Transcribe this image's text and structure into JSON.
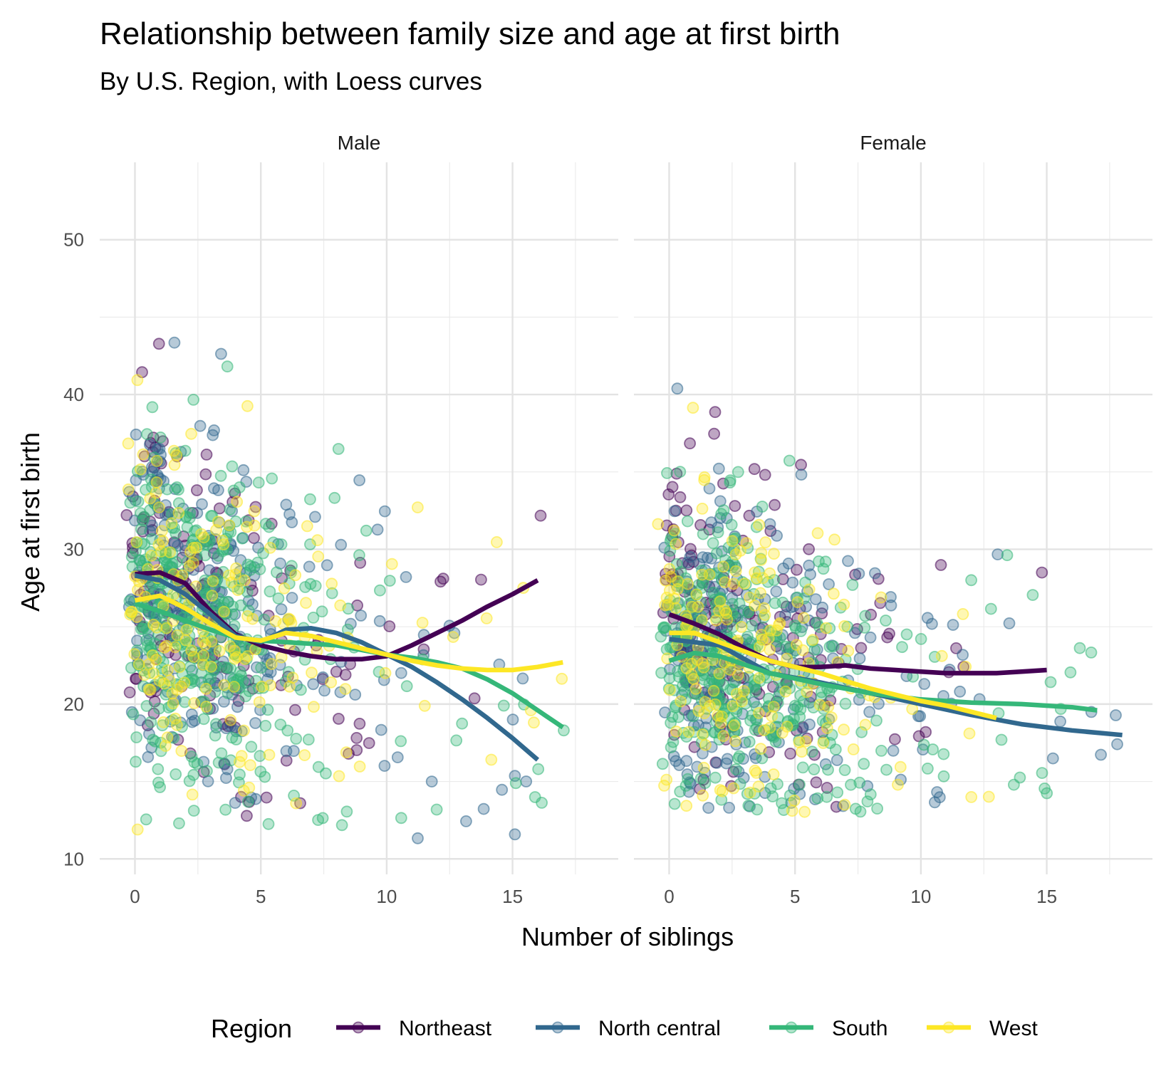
{
  "chart_data": {
    "type": "scatter",
    "title": "Relationship between family size and age at first birth",
    "subtitle": "By U.S. Region, with Loess curves",
    "xlabel": "Number of siblings",
    "ylabel": "Age at first birth",
    "xlim": [
      -1.4,
      19.2
    ],
    "ylim": [
      9,
      55
    ],
    "x_ticks": [
      0,
      5,
      10,
      15
    ],
    "y_ticks": [
      10,
      20,
      30,
      40,
      50
    ],
    "grid": true,
    "legend": {
      "title": "Region",
      "placement": "bottom",
      "entries": [
        "Northeast",
        "North central",
        "South",
        "West"
      ]
    },
    "series_colors": {
      "Northeast": "#440154",
      "North central": "#31688e",
      "South": "#35b779",
      "West": "#fde725"
    },
    "panels": [
      {
        "name": "Male",
        "loess": [
          {
            "name": "Northeast",
            "x": [
              0,
              1,
              2,
              3,
              4,
              5,
              6,
              7,
              8,
              9,
              10,
              11,
              12,
              13,
              14,
              15,
              16
            ],
            "y": [
              28.4,
              28.5,
              27.8,
              26.0,
              24.5,
              23.8,
              23.4,
              23.1,
              22.9,
              22.9,
              23.1,
              23.8,
              24.6,
              25.4,
              26.3,
              27.1,
              28.0
            ]
          },
          {
            "name": "North central",
            "x": [
              0,
              1,
              2,
              3,
              4,
              5,
              6,
              7,
              8,
              9,
              10,
              11,
              12,
              13,
              14,
              15,
              16
            ],
            "y": [
              28.3,
              28.0,
              27.1,
              25.8,
              24.4,
              24.0,
              24.8,
              24.9,
              24.6,
              24.0,
              23.2,
              22.4,
              21.4,
              20.3,
              19.1,
              17.8,
              16.4
            ]
          },
          {
            "name": "South",
            "x": [
              0,
              1,
              2,
              3,
              4,
              5,
              6,
              7,
              8,
              9,
              10,
              11,
              12,
              13,
              14,
              15,
              16,
              17
            ],
            "y": [
              26.5,
              26.0,
              25.4,
              24.8,
              24.3,
              24.1,
              24.0,
              23.9,
              23.8,
              23.5,
              23.2,
              23.0,
              22.7,
              22.3,
              21.6,
              20.7,
              19.6,
              18.5
            ]
          },
          {
            "name": "West",
            "x": [
              0,
              1,
              2,
              3,
              4,
              5,
              6,
              7,
              8,
              9,
              10,
              11,
              12,
              13,
              14,
              15,
              16,
              17
            ],
            "y": [
              26.7,
              27.0,
              26.2,
              25.2,
              24.3,
              24.1,
              24.6,
              24.4,
              24.0,
              23.6,
              23.2,
              22.8,
              22.5,
              22.3,
              22.2,
              22.2,
              22.4,
              22.7
            ]
          }
        ]
      },
      {
        "name": "Female",
        "loess": [
          {
            "name": "Northeast",
            "x": [
              0,
              1,
              2,
              3,
              4,
              5,
              6,
              7,
              8,
              9,
              10,
              11,
              12,
              13,
              14,
              15
            ],
            "y": [
              25.8,
              25.2,
              24.5,
              23.6,
              22.8,
              22.4,
              22.4,
              22.5,
              22.3,
              22.2,
              22.1,
              22.0,
              22.0,
              22.0,
              22.1,
              22.2
            ]
          },
          {
            "name": "North central",
            "x": [
              0,
              2,
              4,
              6,
              8,
              10,
              12,
              14,
              16,
              18
            ],
            "y": [
              24.2,
              23.8,
              22.0,
              21.4,
              20.7,
              20.0,
              19.3,
              18.7,
              18.3,
              18.0
            ]
          },
          {
            "name": "South",
            "x": [
              0,
              1,
              2,
              4,
              6,
              8,
              10,
              12,
              14,
              16,
              17
            ],
            "y": [
              22.8,
              23.3,
              23.1,
              22.0,
              21.3,
              20.7,
              20.3,
              20.1,
              20.0,
              19.8,
              19.6
            ]
          },
          {
            "name": "West",
            "x": [
              0,
              1,
              2,
              3,
              4,
              5,
              6,
              7,
              8,
              9,
              10,
              11,
              12,
              13
            ],
            "y": [
              24.6,
              24.6,
              24.0,
              23.4,
              22.8,
              22.4,
              22.0,
              21.5,
              21.0,
              20.6,
              20.2,
              19.9,
              19.5,
              19.1
            ]
          }
        ]
      }
    ]
  }
}
